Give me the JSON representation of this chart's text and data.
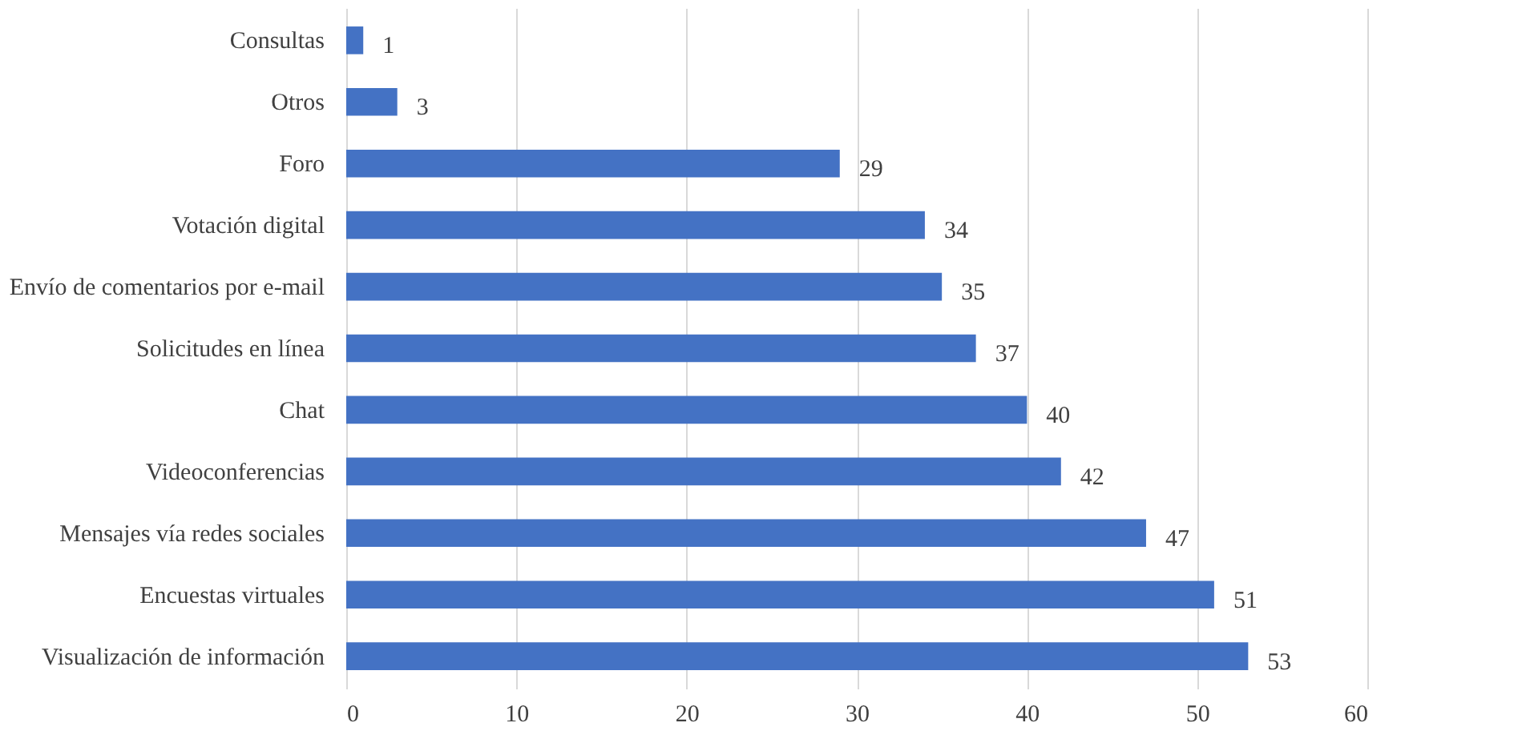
{
  "chart_data": {
    "type": "bar",
    "orientation": "horizontal",
    "categories": [
      "Consultas",
      "Otros",
      "Foro",
      "Votación digital",
      "Envío de comentarios por e-mail",
      "Solicitudes en línea",
      "Chat",
      "Videoconferencias",
      "Mensajes vía redes sociales",
      "Encuestas virtuales",
      "Visualización de información"
    ],
    "values": [
      1,
      3,
      29,
      34,
      35,
      37,
      40,
      42,
      47,
      51,
      53
    ],
    "color": "#4472c4",
    "xlim": [
      0,
      60
    ],
    "xticks": [
      0,
      10,
      20,
      30,
      40,
      50,
      60
    ],
    "grid": "x",
    "data_labels": true
  }
}
